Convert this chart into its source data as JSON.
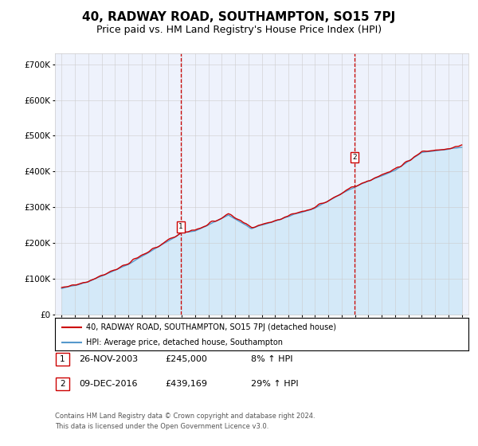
{
  "title": "40, RADWAY ROAD, SOUTHAMPTON, SO15 7PJ",
  "subtitle": "Price paid vs. HM Land Registry's House Price Index (HPI)",
  "title_fontsize": 11,
  "subtitle_fontsize": 9,
  "xlim_start": 1994.5,
  "xlim_end": 2025.5,
  "ylim": [
    0,
    730000
  ],
  "yticks": [
    0,
    100000,
    200000,
    300000,
    400000,
    500000,
    600000,
    700000
  ],
  "ytick_labels": [
    "£0",
    "£100K",
    "£200K",
    "£300K",
    "£400K",
    "£500K",
    "£600K",
    "£700K"
  ],
  "sale1_x": 2003.92,
  "sale1_y": 245000,
  "sale2_x": 2016.95,
  "sale2_y": 439169,
  "legend_labels": [
    "40, RADWAY ROAD, SOUTHAMPTON, SO15 7PJ (detached house)",
    "HPI: Average price, detached house, Southampton"
  ],
  "note1_label": "1",
  "note1_date": "26-NOV-2003",
  "note1_price": "£245,000",
  "note1_hpi": "8% ↑ HPI",
  "note2_label": "2",
  "note2_date": "09-DEC-2016",
  "note2_price": "£439,169",
  "note2_hpi": "29% ↑ HPI",
  "copyright_text": "Contains HM Land Registry data © Crown copyright and database right 2024.\nThis data is licensed under the Open Government Licence v3.0.",
  "line_color_red": "#cc0000",
  "line_color_blue": "#5599cc",
  "fill_color_blue": "#d0e8f8",
  "background_color": "#eef2fc",
  "grid_color": "#cccccc",
  "marker_box_color": "#cc0000"
}
